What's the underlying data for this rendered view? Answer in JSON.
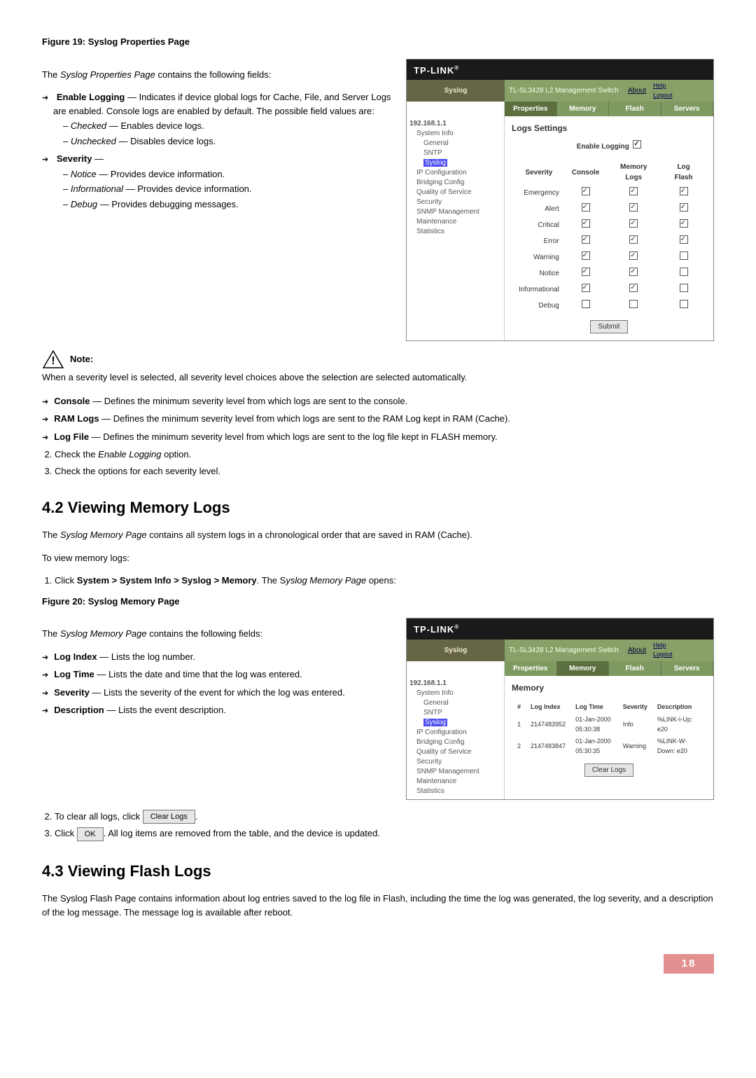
{
  "figure19_title": "Figure 19: Syslog Properties Page",
  "p_intro19": "The Syslog Properties Page contains the following fields:",
  "enable_logging_label": "Enable Logging",
  "enable_logging_desc": " — Indicates if device global logs for Cache, File, and Server Logs are enabled. Console logs are enabled by default. The possible field values are:",
  "checked_label": "Checked",
  "checked_desc": " — Enables device logs.",
  "unchecked_label": "Unchecked",
  "unchecked_desc": " — Disables device logs.",
  "severity_label": "Severity",
  "severity_dash": " —",
  "notice_label": "Notice",
  "notice_desc": " — Provides device information.",
  "informational_label": "Informational",
  "informational_desc": " — Provides device information.",
  "debug_label": "Debug",
  "debug_desc": " — Provides debugging messages.",
  "note_label": "Note:",
  "note_text": "When a severity level is selected, all severity level choices above the selection are selected automatically.",
  "console_label": "Console",
  "console_desc": " — Defines the minimum severity level from which logs are sent to the console.",
  "ram_label": "RAM Logs",
  "ram_desc": " — Defines the minimum severity level from which logs are sent to the RAM Log kept in RAM (Cache).",
  "logfile_label": "Log File",
  "logfile_desc": " — Defines the minimum severity level from which logs are sent to the log file kept in FLASH memory.",
  "step2": "Check the Enable Logging option.",
  "step2_italic": "Enable Logging",
  "step2_pre": "Check the ",
  "step2_post": " option.",
  "step3": "Check the options for each severity level.",
  "h42": "4.2   Viewing Memory Logs",
  "p42_intro": "The Syslog Memory Page contains all system logs in a chronological order that are saved in RAM (Cache).",
  "p42_intro_italic": "Syslog Memory Page",
  "p42_pre": "The ",
  "p42_post": " contains all system logs in a chronological order that are saved in RAM (Cache).",
  "p_view": "To view memory logs:",
  "step_mem_1_pre": "Click ",
  "step_mem_1_bold": "System > System Info > Syslog > Memory",
  "step_mem_1_mid": ". The S",
  "step_mem_1_italic": "yslog Memory Page",
  "step_mem_1_post": " opens:",
  "figure20_title": "Figure 20: Syslog Memory Page",
  "p_intro20_pre": "The ",
  "p_intro20_italic": "Syslog Memory Page",
  "p_intro20_post": " contains the following fields:",
  "logindex_label": "Log Index",
  "logindex_desc": " — Lists the log number.",
  "logtime_label": "Log Time",
  "logtime_desc": " — Lists the date and time that the log was entered.",
  "sev2_label": "Severity",
  "sev2_desc": " — Lists the severity of the event for which the log was entered.",
  "desc_label": "Description",
  "desc_desc": " — Lists the event description.",
  "clear_step_pre": "To clear all logs, click ",
  "clear_btn": "Clear Logs",
  "ok_step_pre": "Click ",
  "ok_btn": "OK",
  "ok_step_post": ". All log items are removed from the table, and the device is updated.",
  "h43": "4.3   Viewing Flash Logs",
  "p43": "The Syslog Flash Page contains information about log entries saved to the log file in Flash, including the time the log was generated, the log severity, and a description of the log message. The message log is available after reboot.",
  "page_number": "18",
  "shot": {
    "brand": "TP-LINK",
    "mgmt": "TL-SL3428 L2 Management Switch",
    "about": "About",
    "help": "Help",
    "logout": "Logout",
    "syslog": "Syslog",
    "tabs": {
      "properties": "Properties",
      "memory": "Memory",
      "flash": "Flash",
      "servers": "Servers"
    },
    "tree": {
      "root": "192.168.1.1",
      "items": [
        "System Info",
        "General",
        "SNTP",
        "Syslog",
        "IP Configuration",
        "Bridging Config",
        "Quality of Service",
        "Security",
        "SNMP Management",
        "Maintenance",
        "Statistics"
      ]
    },
    "logs_settings": "Logs Settings",
    "enable_logging": "Enable Logging",
    "sev_head": {
      "severity": "Severity",
      "console": "Console",
      "memory": "Memory Logs",
      "flash": "Log Flash"
    },
    "rows": [
      {
        "name": "Emergency",
        "c": true,
        "m": true,
        "f": true
      },
      {
        "name": "Alert",
        "c": true,
        "m": true,
        "f": true
      },
      {
        "name": "Critical",
        "c": true,
        "m": true,
        "f": true
      },
      {
        "name": "Error",
        "c": true,
        "m": true,
        "f": true
      },
      {
        "name": "Warning",
        "c": true,
        "m": true,
        "f": false
      },
      {
        "name": "Notice",
        "c": true,
        "m": true,
        "f": false
      },
      {
        "name": "Informational",
        "c": true,
        "m": true,
        "f": false
      },
      {
        "name": "Debug",
        "c": false,
        "m": false,
        "f": false
      }
    ],
    "submit": "Submit",
    "memory_title": "Memory",
    "mem_head": {
      "idx": "#",
      "logindex": "Log Index",
      "logtime": "Log Time",
      "severity": "Severity",
      "desc": "Description"
    },
    "mem_rows": [
      {
        "n": "1",
        "idx": "2147483952",
        "time": "01-Jan-2000 05:30:38",
        "sev": "Info",
        "desc": "%LINK-I-Up:  e20"
      },
      {
        "n": "2",
        "idx": "2147483847",
        "time": "01-Jan-2000 05:30:35",
        "sev": "Warning",
        "desc": "%LINK-W-Down:  e20"
      }
    ],
    "clear": "Clear Logs"
  }
}
